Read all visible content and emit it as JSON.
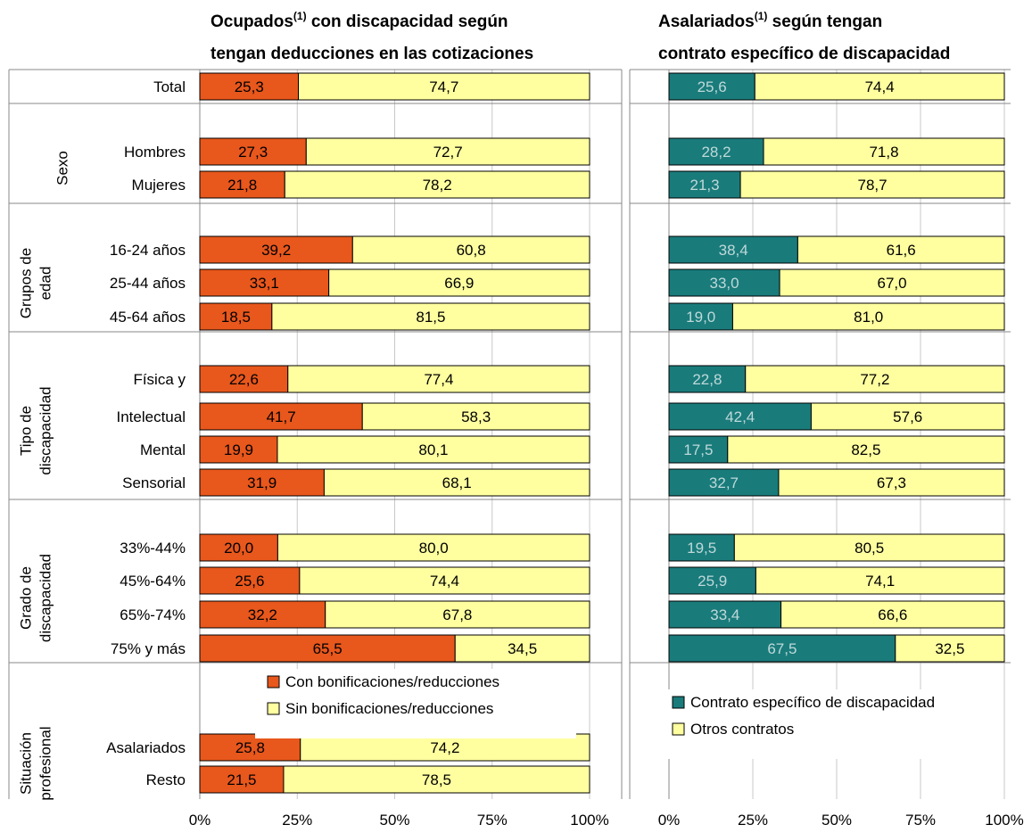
{
  "chart_data": [
    {
      "type": "bar",
      "orientation": "horizontal",
      "stacked": true,
      "percent": true,
      "title": {
        "line1_pre": "Ocupados",
        "sup": "(1)",
        "line1_post": " con discapacidad según",
        "line2": "tengan deducciones en las cotizaciones"
      },
      "colors": {
        "series_a": "#E8571C",
        "series_b": "#FFFFA0"
      },
      "label_colors": {
        "series_a": "#000000",
        "series_b": "#000000"
      },
      "categories": [
        "Total",
        "Hombres",
        "Mujeres",
        "16-24 años",
        "25-44 años",
        "45-64 años",
        "Física y",
        "Intelectual",
        "Mental",
        "Sensorial",
        "33%-44%",
        "45%-64%",
        "65%-74%",
        "75% y más",
        "Asalariados",
        "Resto"
      ],
      "series": [
        {
          "name": "Con bonificaciones/reducciones",
          "values": [
            25.3,
            27.3,
            21.8,
            39.2,
            33.1,
            18.5,
            22.6,
            41.7,
            19.9,
            31.9,
            20.0,
            25.6,
            32.2,
            65.5,
            25.8,
            21.5
          ],
          "labels": [
            "25,3",
            "27,3",
            "21,8",
            "39,2",
            "33,1",
            "18,5",
            "22,6",
            "41,7",
            "19,9",
            "31,9",
            "20,0",
            "25,6",
            "32,2",
            "65,5",
            "25,8",
            "21,5"
          ]
        },
        {
          "name": "Sin bonificaciones/reducciones",
          "values": [
            74.7,
            72.7,
            78.2,
            60.8,
            66.9,
            81.5,
            77.4,
            58.3,
            80.1,
            68.1,
            80.0,
            74.4,
            67.8,
            34.5,
            74.2,
            78.5
          ],
          "labels": [
            "74,7",
            "72,7",
            "78,2",
            "60,8",
            "66,9",
            "81,5",
            "77,4",
            "58,3",
            "80,1",
            "68,1",
            "80,0",
            "74,4",
            "67,8",
            "34,5",
            "74,2",
            "78,5"
          ]
        }
      ],
      "xlim": [
        0,
        100
      ],
      "xticks": [
        "0%",
        "25%",
        "50%",
        "75%",
        "100%"
      ],
      "grid": true,
      "legend": "center"
    },
    {
      "type": "bar",
      "orientation": "horizontal",
      "stacked": true,
      "percent": true,
      "title": {
        "line1_pre": "Asalariados",
        "sup": "(1)",
        "line1_post": " según tengan",
        "line2": "contrato específico de discapacidad"
      },
      "colors": {
        "series_a": "#1A7B7B",
        "series_b": "#FFFFA0"
      },
      "label_colors": {
        "series_a": "#BFD9D9",
        "series_b": "#000000"
      },
      "categories": [
        "Total",
        "Hombres",
        "Mujeres",
        "16-24 años",
        "25-44 años",
        "45-64 años",
        "Física y",
        "Intelectual",
        "Mental",
        "Sensorial",
        "33%-44%",
        "45%-64%",
        "65%-74%",
        "75% y más"
      ],
      "series": [
        {
          "name": "Contrato específico de discapacidad",
          "values": [
            25.6,
            28.2,
            21.3,
            38.4,
            33.0,
            19.0,
            22.8,
            42.4,
            17.5,
            32.7,
            19.5,
            25.9,
            33.4,
            67.5
          ],
          "labels": [
            "25,6",
            "28,2",
            "21,3",
            "38,4",
            "33,0",
            "19,0",
            "22,8",
            "42,4",
            "17,5",
            "32,7",
            "19,5",
            "25,9",
            "33,4",
            "67,5"
          ]
        },
        {
          "name": "Otros contratos",
          "values": [
            74.4,
            71.8,
            78.7,
            61.6,
            67.0,
            81.0,
            77.2,
            57.6,
            82.5,
            67.3,
            80.5,
            74.1,
            66.6,
            32.5
          ],
          "labels": [
            "74,4",
            "71,8",
            "78,7",
            "61,6",
            "67,0",
            "81,0",
            "77,2",
            "57,6",
            "82,5",
            "67,3",
            "80,5",
            "74,1",
            "66,6",
            "32,5"
          ]
        }
      ],
      "xlim": [
        0,
        100
      ],
      "xticks": [
        "0%",
        "25%",
        "50%",
        "75%",
        "100%"
      ],
      "grid": true,
      "legend": "center"
    }
  ],
  "groups": [
    {
      "lines": [
        "Sexo"
      ]
    },
    {
      "lines": [
        "Grupos de",
        "edad"
      ]
    },
    {
      "lines": [
        "Tipo de",
        "discapacidad"
      ]
    },
    {
      "lines": [
        "Grado de",
        "discapacidad"
      ]
    },
    {
      "lines": [
        "Situación",
        "profesional"
      ]
    }
  ]
}
